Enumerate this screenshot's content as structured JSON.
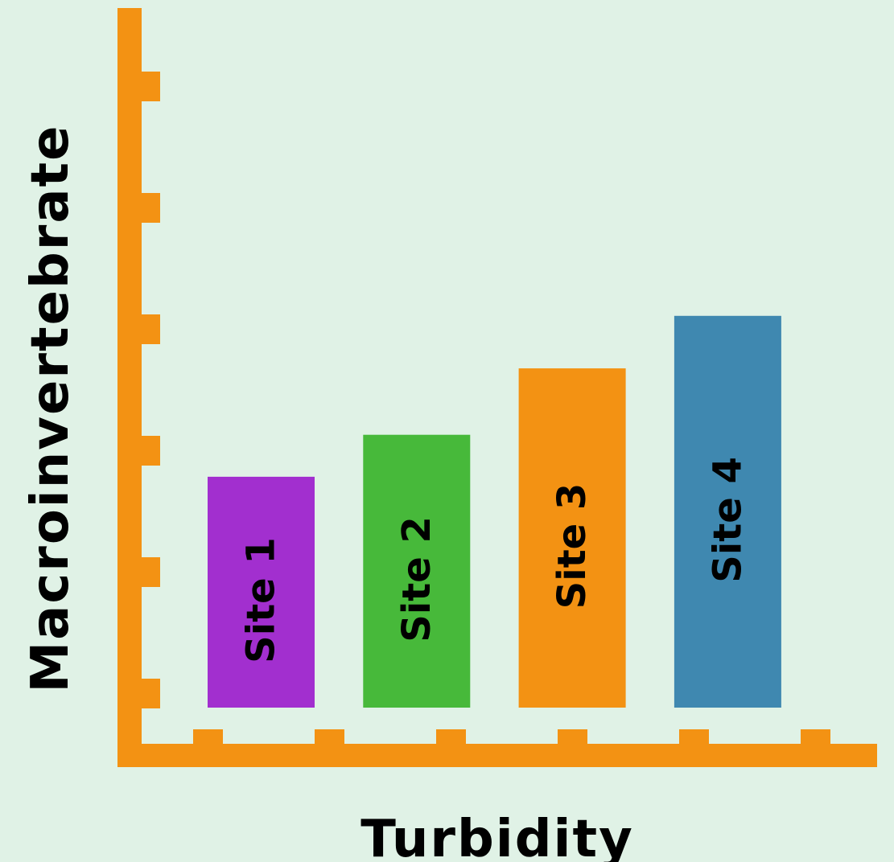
{
  "chart_data": {
    "type": "bar",
    "categories": [
      "Site 1",
      "Site 2",
      "Site 3",
      "Site 4"
    ],
    "values": [
      3.3,
      3.9,
      4.85,
      5.6
    ],
    "colors": [
      "#a22fcf",
      "#47b93a",
      "#f39213",
      "#3f88b0"
    ],
    "xlabel": "Turbidity",
    "ylabel": "Macroinvertebrate",
    "ylim": [
      0,
      10
    ],
    "y_ticks": 6,
    "x_ticks": 6,
    "axis_color": "#f39213",
    "background": "#e0f2e6",
    "grid": false,
    "bar_labels_inside": true
  }
}
